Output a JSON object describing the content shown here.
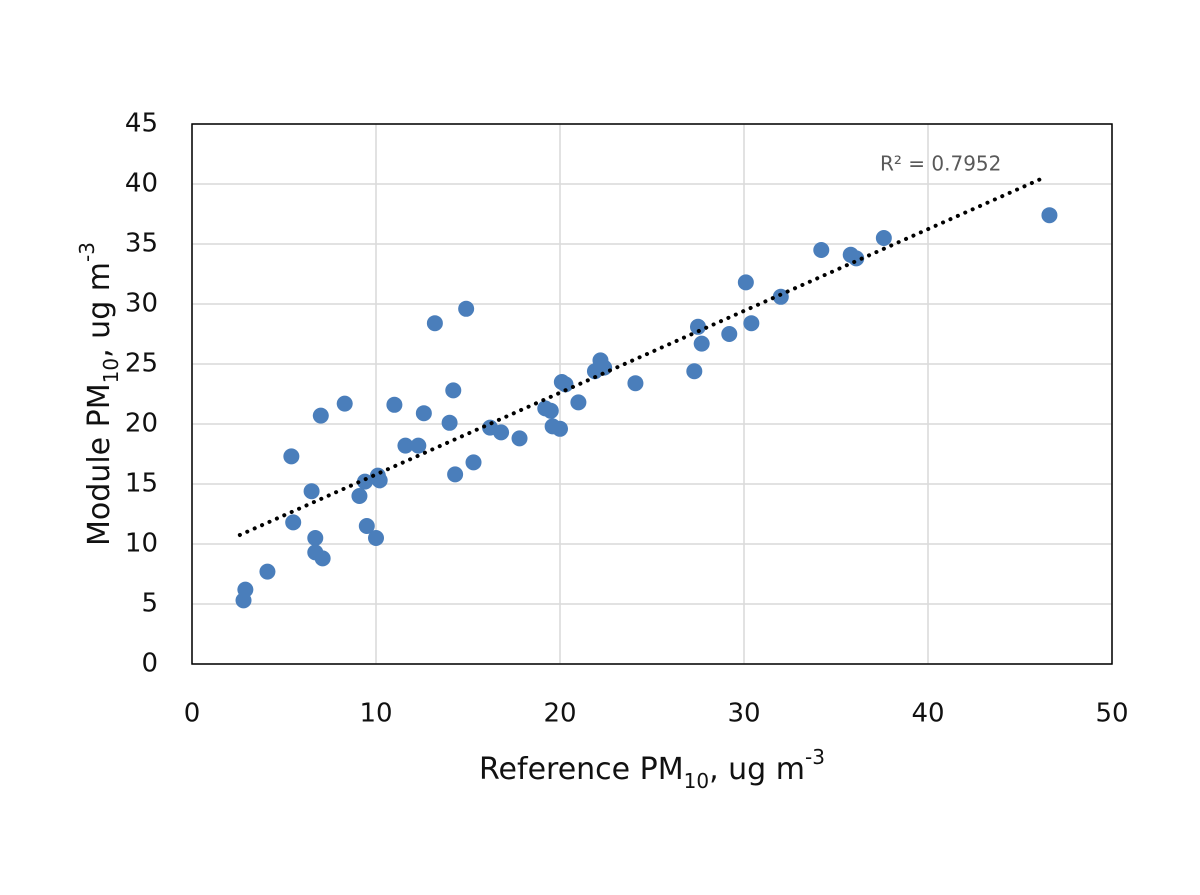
{
  "chart_data": {
    "type": "scatter",
    "x_label": [
      "Reference PM",
      "10",
      ", ug m",
      "-3"
    ],
    "y_label": [
      "Module PM",
      "10",
      ", ug m",
      "-3"
    ],
    "annotation": "R² = 0.7952",
    "color": "#4a7ebb",
    "grid": true,
    "xlim": [
      0,
      50
    ],
    "ylim": [
      0,
      45
    ],
    "xticks": [
      0,
      10,
      20,
      30,
      40,
      50
    ],
    "yticks": [
      0,
      5,
      10,
      15,
      20,
      25,
      30,
      35,
      40,
      45
    ],
    "x": [
      2.8,
      2.9,
      4.1,
      5.4,
      5.5,
      6.5,
      6.7,
      6.7,
      7.1,
      7.0,
      8.3,
      9.1,
      9.4,
      9.5,
      10.0,
      10.1,
      10.2,
      11.0,
      11.6,
      12.3,
      12.6,
      13.2,
      14.0,
      14.2,
      14.3,
      14.9,
      15.3,
      16.2,
      16.8,
      17.8,
      19.2,
      19.5,
      19.6,
      20.0,
      20.1,
      20.3,
      21.0,
      21.9,
      22.2,
      22.4,
      24.1,
      27.3,
      27.5,
      27.7,
      29.2,
      30.1,
      30.4,
      32.0,
      34.2,
      35.8,
      36.1,
      37.6,
      46.6
    ],
    "values": [
      5.3,
      6.2,
      7.7,
      17.3,
      11.8,
      14.4,
      10.5,
      9.3,
      8.8,
      20.7,
      21.7,
      14.0,
      15.2,
      11.5,
      10.5,
      15.7,
      15.3,
      21.6,
      18.2,
      18.2,
      20.9,
      28.4,
      20.1,
      22.8,
      15.8,
      29.6,
      16.8,
      19.7,
      19.3,
      18.8,
      21.3,
      21.1,
      19.8,
      19.6,
      23.5,
      23.3,
      21.8,
      24.4,
      25.3,
      24.7,
      23.4,
      24.4,
      28.1,
      26.7,
      27.5,
      31.8,
      28.4,
      30.6,
      34.5,
      34.1,
      33.8,
      35.5,
      37.4
    ],
    "trendline": {
      "x": [
        2.6,
        46.4
      ],
      "values": [
        10.75,
        40.6
      ]
    }
  }
}
